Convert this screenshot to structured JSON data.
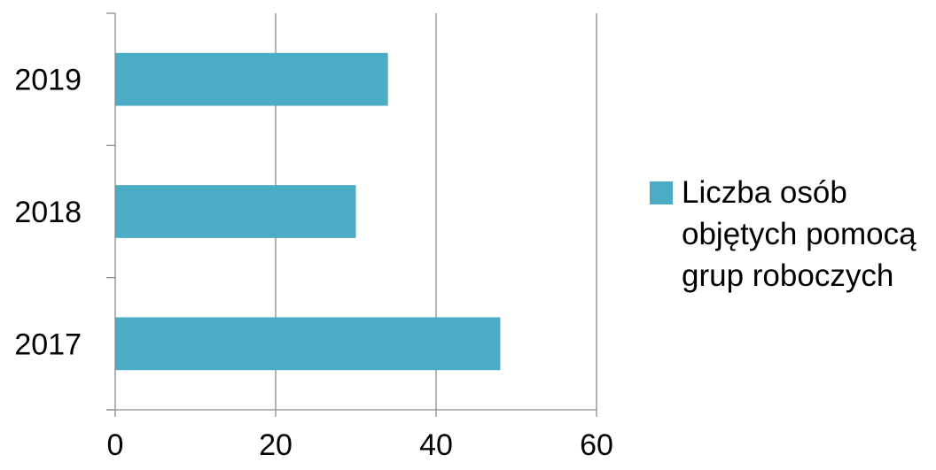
{
  "chart_data": {
    "type": "bar",
    "orientation": "horizontal",
    "categories": [
      "2017",
      "2018",
      "2019"
    ],
    "series": [
      {
        "name": "Liczba osób objętych pomocą grup roboczych",
        "values": [
          48,
          30,
          34
        ],
        "color": "#4BACC6"
      }
    ],
    "xlim": [
      0,
      60
    ],
    "x_ticks": [
      "0",
      "20",
      "40",
      "60"
    ],
    "grid": true,
    "legend_position": "right",
    "title": "",
    "xlabel": "",
    "ylabel": ""
  }
}
